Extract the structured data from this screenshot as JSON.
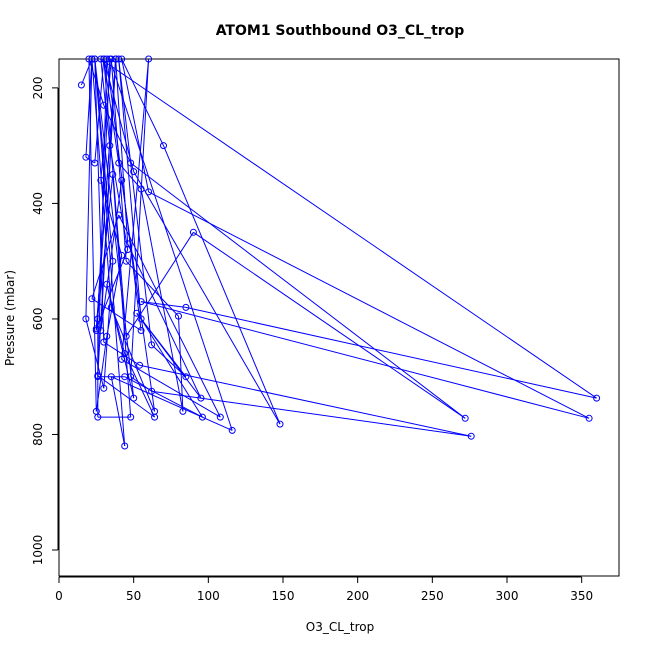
{
  "chart_data": {
    "type": "line",
    "title": "ATOM1 Southbound O3_CL_trop",
    "xlabel": "O3_CL_trop",
    "ylabel": "Pressure (mbar)",
    "xlim": [
      0,
      375
    ],
    "ylim": [
      1045,
      150
    ],
    "y_reversed": true,
    "x_ticks": [
      0,
      50,
      100,
      150,
      200,
      250,
      300,
      350
    ],
    "y_ticks": [
      200,
      400,
      600,
      800,
      1000
    ],
    "grid": false,
    "series_color": "#0000ff",
    "marker": "open-circle",
    "series": [
      {
        "points": [
          [
            15,
            195
          ],
          [
            22,
            150
          ],
          [
            18,
            320
          ],
          [
            24,
            330
          ],
          [
            30,
            150
          ],
          [
            40,
            330
          ],
          [
            55,
            375
          ],
          [
            83,
            760
          ],
          [
            80,
            595
          ],
          [
            45,
            500
          ],
          [
            35,
            150
          ],
          [
            28,
            360
          ],
          [
            42,
            490
          ],
          [
            32,
            630
          ],
          [
            25,
            760
          ],
          [
            20,
            150
          ],
          [
            30,
            230
          ],
          [
            48,
            330
          ],
          [
            272,
            772
          ],
          [
            90,
            450
          ],
          [
            45,
            630
          ],
          [
            30,
            150
          ],
          [
            50,
            345
          ],
          [
            148,
            782
          ],
          [
            70,
            300
          ],
          [
            42,
            150
          ],
          [
            60,
            380
          ],
          [
            355,
            772
          ],
          [
            55,
            570
          ],
          [
            85,
            580
          ],
          [
            360,
            737
          ],
          [
            28,
            150
          ],
          [
            34,
            300
          ],
          [
            46,
            480
          ],
          [
            25,
            617
          ],
          [
            38,
            150
          ],
          [
            28,
            620
          ],
          [
            42,
            360
          ],
          [
            64,
            760
          ],
          [
            35,
            580
          ],
          [
            22,
            150
          ],
          [
            18,
            600
          ],
          [
            30,
            720
          ],
          [
            36,
            500
          ],
          [
            24,
            150
          ],
          [
            30,
            640
          ],
          [
            54,
            680
          ],
          [
            276,
            803
          ],
          [
            62,
            725
          ],
          [
            48,
            700
          ],
          [
            60,
            150
          ],
          [
            42,
            670
          ],
          [
            108,
            770
          ],
          [
            40,
            420
          ],
          [
            22,
            565
          ],
          [
            55,
            620
          ],
          [
            32,
            150
          ],
          [
            26,
            700
          ],
          [
            44,
            700
          ],
          [
            96,
            770
          ],
          [
            55,
            600
          ],
          [
            40,
            150
          ],
          [
            62,
            645
          ],
          [
            85,
            700
          ],
          [
            52,
            590
          ],
          [
            95,
            737
          ],
          [
            46,
            470
          ],
          [
            38,
            150
          ],
          [
            26,
            698
          ],
          [
            64,
            770
          ],
          [
            44,
            660
          ],
          [
            32,
            540
          ],
          [
            50,
            737
          ],
          [
            24,
            150
          ],
          [
            44,
            820
          ],
          [
            35,
            700
          ],
          [
            116,
            793
          ],
          [
            34,
            150
          ],
          [
            26,
            600
          ],
          [
            26,
            770
          ],
          [
            48,
            770
          ],
          [
            36,
            350
          ],
          [
            25,
            620
          ],
          [
            38,
            150
          ]
        ]
      }
    ]
  }
}
